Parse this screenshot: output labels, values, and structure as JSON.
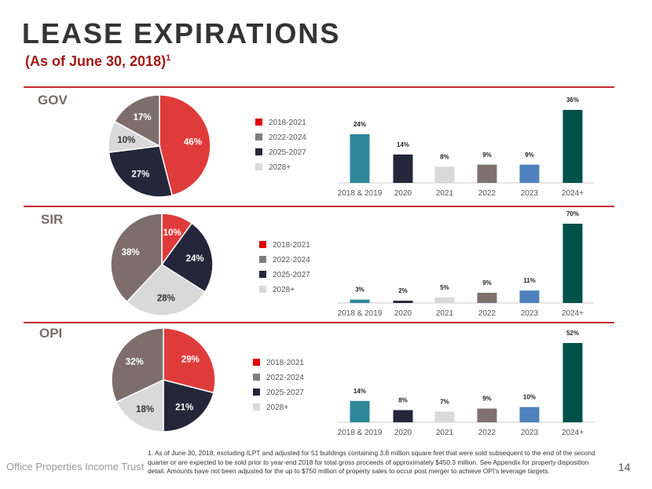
{
  "title": "LEASE EXPIRATIONS",
  "subtitle": "(As of June 30, 2018)",
  "subtitle_sup": "1",
  "footer": "Office Properties Income Trust",
  "page_number": "14",
  "footnote": "1.  As of June 30, 2018, excluding ILPT and adjusted for 51 buildings containing 3.8 million square feet that were sold subsequent to the end of the second quarter or are expected to be sold prior to year-end 2018 for total gross proceeds of approximately $450.3 million.  See Appendix for property disposition detail.  Amounts have not been adjusted for the up to $750 million of property sales to occur post merger to achieve OPI's leverage targets.",
  "colors": {
    "red": "#e03b3b",
    "navy": "#24263a",
    "light": "#d9d9d9",
    "brown": "#7d6e6c",
    "teal": "#2e879a",
    "gray_bar": "#d9d9d9",
    "brown_bar": "#7f716f",
    "blue": "#4f81bd",
    "green": "#00514a",
    "legend_red": "#e00000",
    "legend_gray": "#7f7f7f"
  },
  "chart_data": [
    {
      "section": "GOV",
      "type": "pie",
      "legend": [
        "2018-2021",
        "2022-2024",
        "2025-2027",
        "2028+"
      ],
      "values": [
        46,
        17,
        27,
        10
      ],
      "labels": [
        "46%",
        "17%",
        "27%",
        "10%"
      ],
      "bar": {
        "type": "bar",
        "categories": [
          "2018 & 2019",
          "2020",
          "2021",
          "2022",
          "2023",
          "2024+"
        ],
        "values": [
          24,
          14,
          8,
          9,
          9,
          36
        ],
        "labels": [
          "24%",
          "14%",
          "8%",
          "9%",
          "9%",
          "36%"
        ]
      }
    },
    {
      "section": "SIR",
      "type": "pie",
      "legend": [
        "2018-2021",
        "2022-2024",
        "2025-2027",
        "2028+"
      ],
      "values": [
        10,
        38,
        24,
        28
      ],
      "labels": [
        "10%",
        "38%",
        "24%",
        "28%"
      ],
      "bar": {
        "type": "bar",
        "categories": [
          "2018 & 2019",
          "2020",
          "2021",
          "2022",
          "2023",
          "2024+"
        ],
        "values": [
          3,
          2,
          5,
          9,
          11,
          70
        ],
        "labels": [
          "3%",
          "2%",
          "5%",
          "9%",
          "11%",
          "70%"
        ]
      }
    },
    {
      "section": "OPI",
      "type": "pie",
      "legend": [
        "2018-2021",
        "2022-2024",
        "2025-2027",
        "2028+"
      ],
      "values": [
        29,
        32,
        21,
        18
      ],
      "labels": [
        "29%",
        "32%",
        "21%",
        "18%"
      ],
      "bar": {
        "type": "bar",
        "categories": [
          "2018 & 2019",
          "2020",
          "2021",
          "2022",
          "2023",
          "2024+"
        ],
        "values": [
          14,
          8,
          7,
          9,
          10,
          52
        ],
        "labels": [
          "14%",
          "8%",
          "7%",
          "9%",
          "10%",
          "52%"
        ]
      }
    }
  ]
}
